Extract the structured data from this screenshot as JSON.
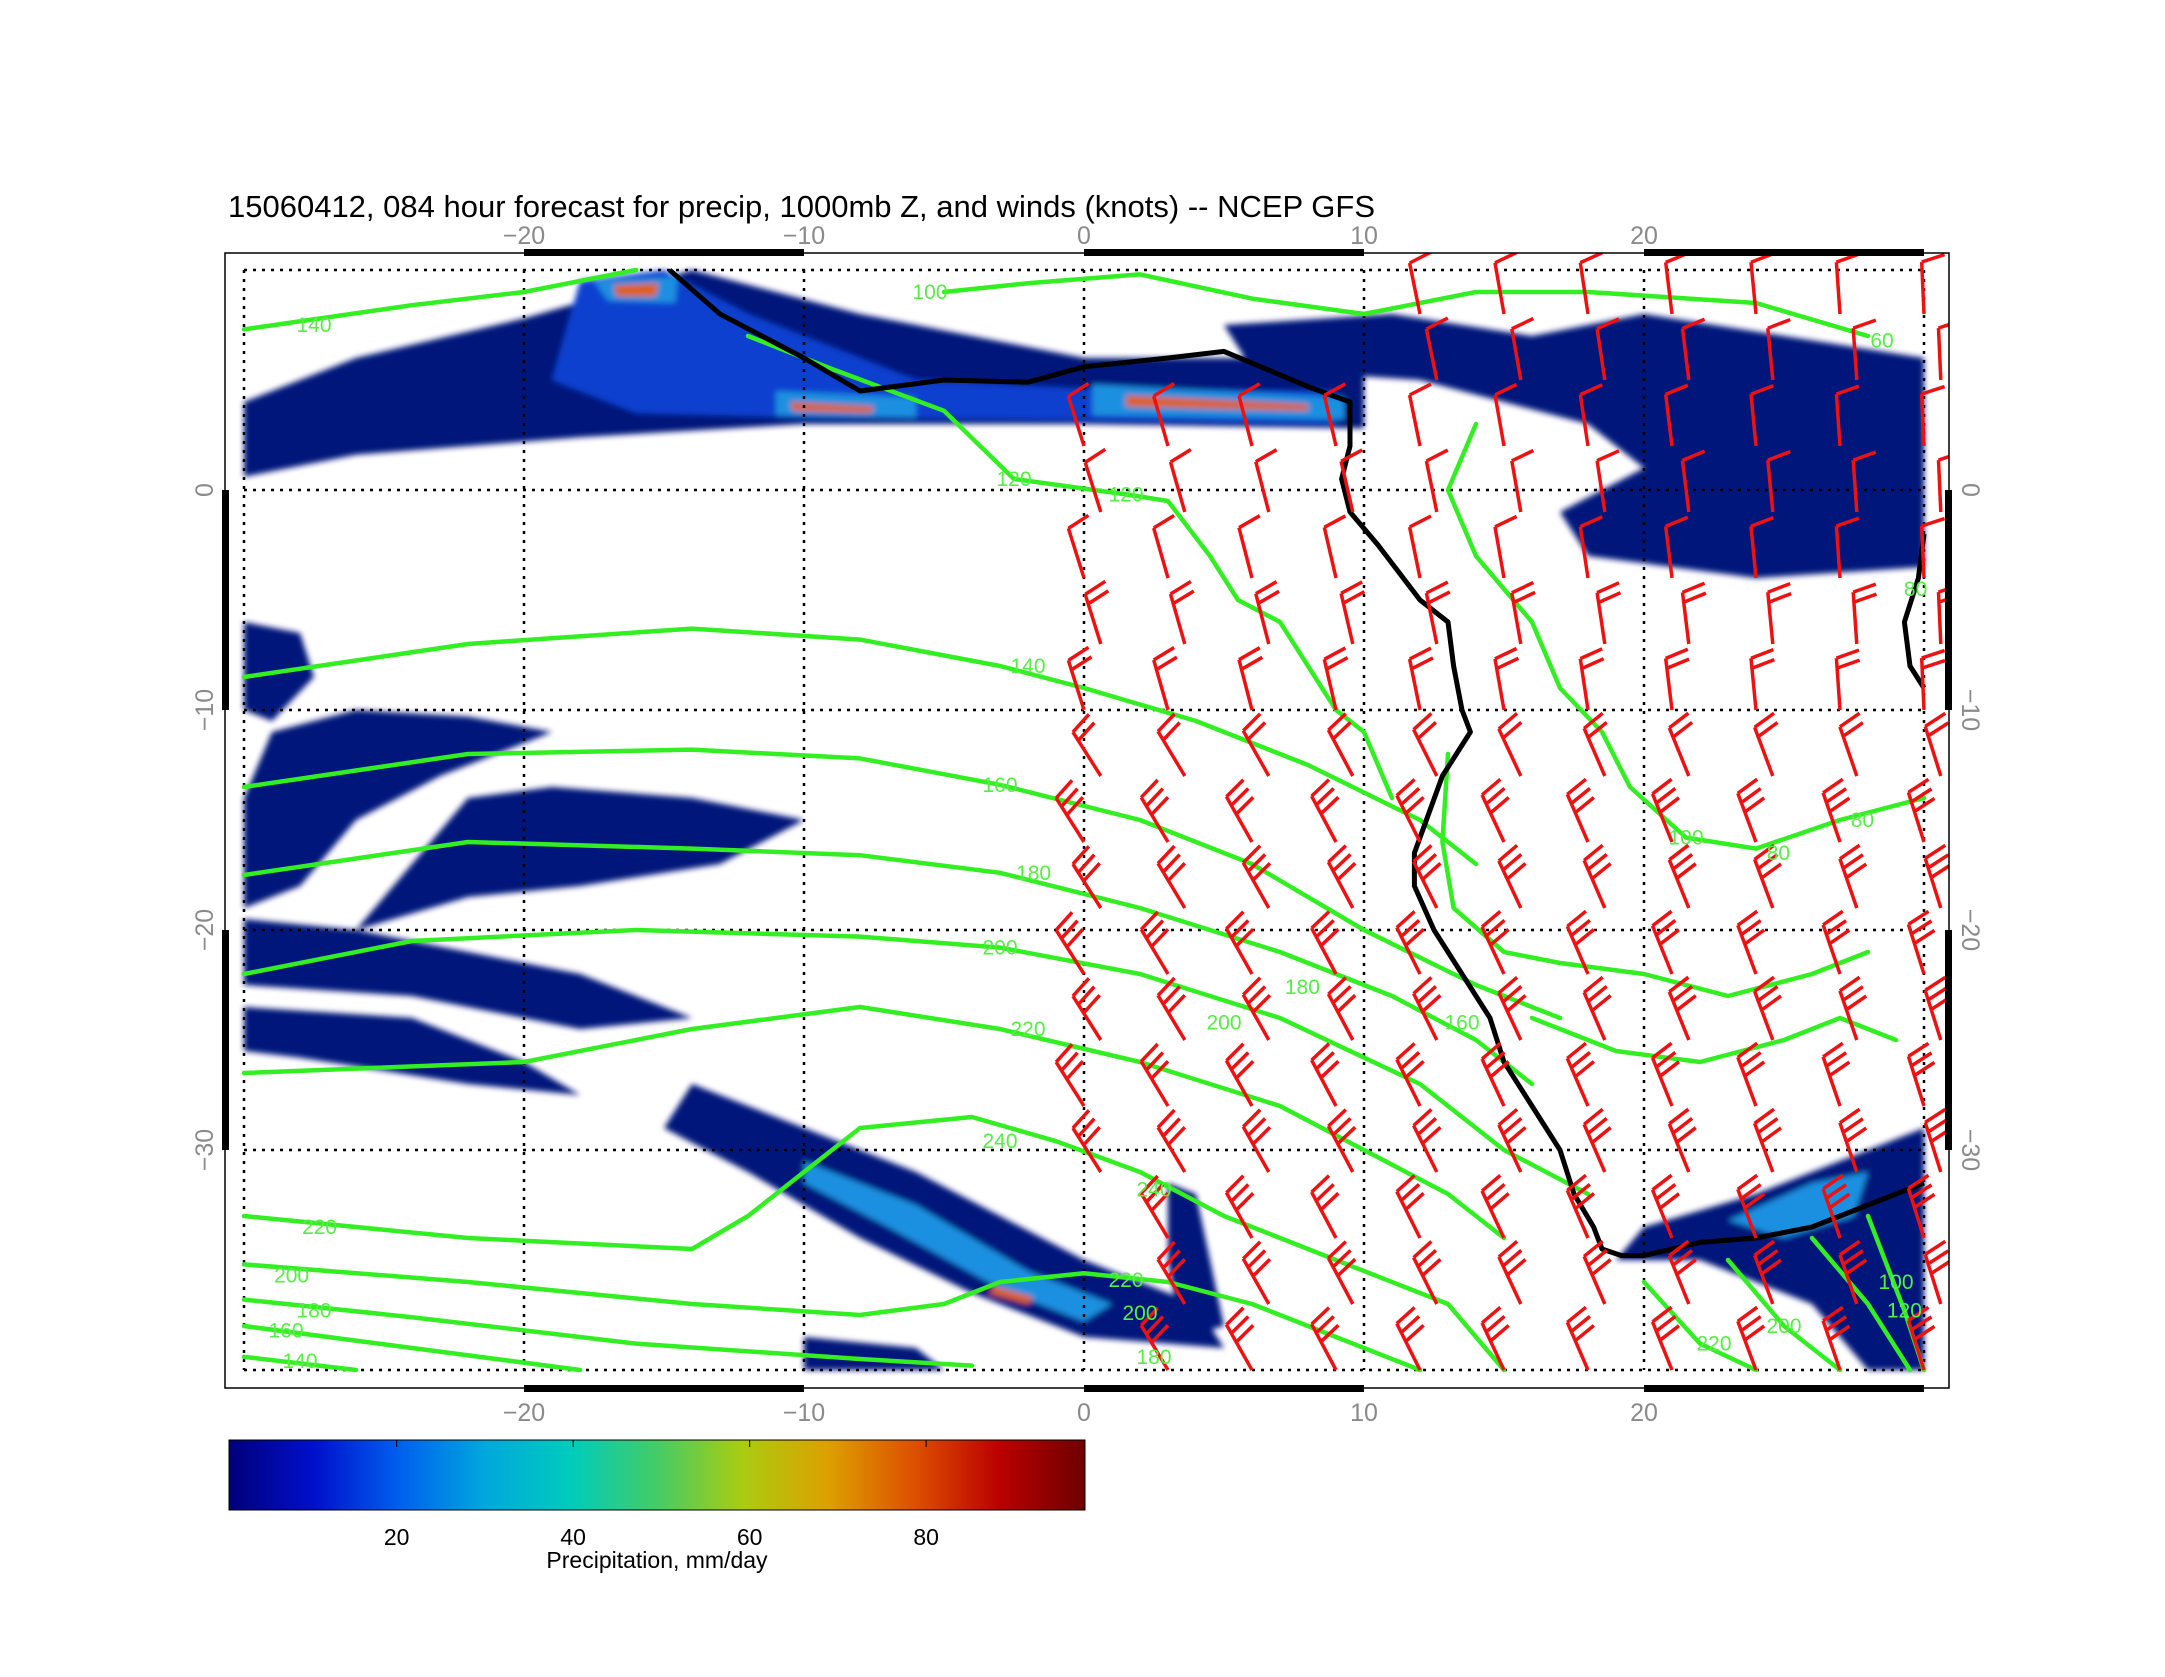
{
  "title": "15060412, 084 hour forecast for precip, 1000mb Z, and winds (knots) -- NCEP GFS",
  "map": {
    "lon_range": [
      -30,
      30
    ],
    "lat_range": [
      -40,
      10
    ],
    "lon_ticks": [
      -20,
      -10,
      0,
      10,
      20
    ],
    "lat_ticks": [
      0,
      -10,
      -20,
      -30
    ],
    "lon_tick_labels": [
      "−20",
      "−10",
      "0",
      "10",
      "20"
    ],
    "lat_tick_labels": [
      "0",
      "−10",
      "−20",
      "−30"
    ],
    "grid": true,
    "fields": {
      "precipitation": {
        "name": "precip",
        "units": "mm/day"
      },
      "height": {
        "name": "1000mb Z",
        "color": "#33ee22"
      },
      "winds": {
        "name": "winds",
        "units": "knots",
        "color": "#ee1111"
      }
    },
    "contour_labels": [
      {
        "text": "140",
        "lon": -27.5,
        "lat": 7.5
      },
      {
        "text": "100",
        "lon": -5.5,
        "lat": 9
      },
      {
        "text": "120",
        "lon": -2.5,
        "lat": 0.5
      },
      {
        "text": "120",
        "lon": 1.5,
        "lat": -0.2
      },
      {
        "text": "60",
        "lon": 28.5,
        "lat": 6.8
      },
      {
        "text": "140",
        "lon": -2,
        "lat": -8
      },
      {
        "text": "160",
        "lon": -3,
        "lat": -13.4
      },
      {
        "text": "180",
        "lon": -1.8,
        "lat": -17.4
      },
      {
        "text": "200",
        "lon": -3,
        "lat": -20.8
      },
      {
        "text": "220",
        "lon": -2,
        "lat": -24.5
      },
      {
        "text": "240",
        "lon": -3,
        "lat": -29.6
      },
      {
        "text": "240",
        "lon": 2.5,
        "lat": -31.8
      },
      {
        "text": "180",
        "lon": 7.8,
        "lat": -22.6
      },
      {
        "text": "200",
        "lon": 5,
        "lat": -24.2
      },
      {
        "text": "160",
        "lon": 13.5,
        "lat": -24.2
      },
      {
        "text": "100",
        "lon": 21.5,
        "lat": -15.8
      },
      {
        "text": "80",
        "lon": 24.8,
        "lat": -16.5
      },
      {
        "text": "80",
        "lon": 27.8,
        "lat": -15
      },
      {
        "text": "220",
        "lon": -27.3,
        "lat": -33.5
      },
      {
        "text": "200",
        "lon": -28.3,
        "lat": -35.7
      },
      {
        "text": "180",
        "lon": -27.5,
        "lat": -37.3
      },
      {
        "text": "160",
        "lon": -28.5,
        "lat": -38.2
      },
      {
        "text": "140",
        "lon": -28,
        "lat": -39.6
      },
      {
        "text": "220",
        "lon": 1.5,
        "lat": -35.9
      },
      {
        "text": "200",
        "lon": 2,
        "lat": -37.4
      },
      {
        "text": "180",
        "lon": 2.5,
        "lat": -39.4
      },
      {
        "text": "220",
        "lon": 22.5,
        "lat": -38.8
      },
      {
        "text": "200",
        "lon": 25,
        "lat": -38
      },
      {
        "text": "100",
        "lon": 29,
        "lat": -36
      },
      {
        "text": "120",
        "lon": 29.3,
        "lat": -37.3
      },
      {
        "text": "80",
        "lon": 29.7,
        "lat": -4.5
      }
    ]
  },
  "colorbar": {
    "label": "Precipitation, mm/day",
    "min": 1,
    "max": 98,
    "ticks": [
      20,
      40,
      60,
      80
    ],
    "colors": [
      "#00007a",
      "#0010cc",
      "#0060ee",
      "#00a8dd",
      "#00ccbb",
      "#44cc66",
      "#aacc10",
      "#dda000",
      "#dd5000",
      "#bb0000",
      "#6e0000"
    ]
  }
}
